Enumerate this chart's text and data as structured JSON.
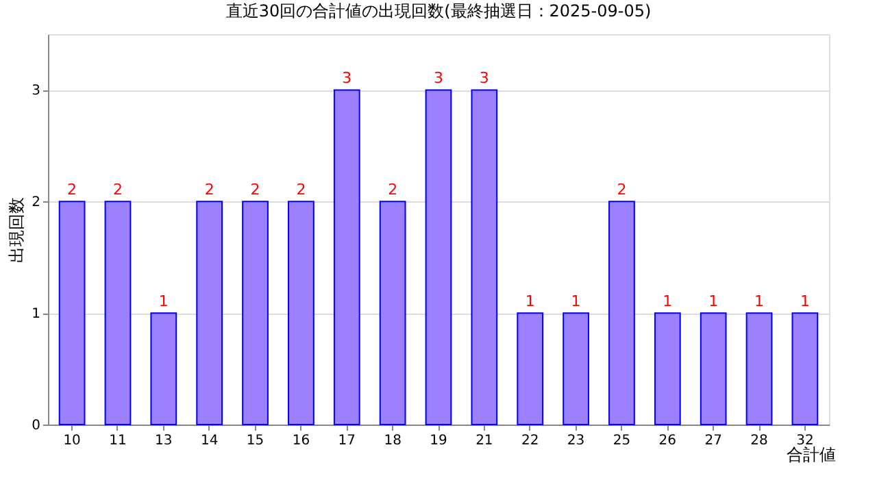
{
  "chart_data": {
    "type": "bar",
    "title": "直近30回の合計値の出現回数(最終抽選日：2025-09-05)",
    "xlabel": "合計値",
    "ylabel": "出現回数",
    "categories": [
      "10",
      "11",
      "13",
      "14",
      "15",
      "16",
      "17",
      "18",
      "19",
      "21",
      "22",
      "23",
      "25",
      "26",
      "27",
      "28",
      "32"
    ],
    "values": [
      2,
      2,
      1,
      2,
      2,
      2,
      3,
      2,
      3,
      3,
      1,
      1,
      2,
      1,
      1,
      1,
      1
    ],
    "color": "#9b80ff",
    "ylim": [
      0,
      3.5
    ],
    "yticks": [
      0,
      1,
      2,
      3
    ],
    "grid": "y",
    "data_labels": true
  }
}
